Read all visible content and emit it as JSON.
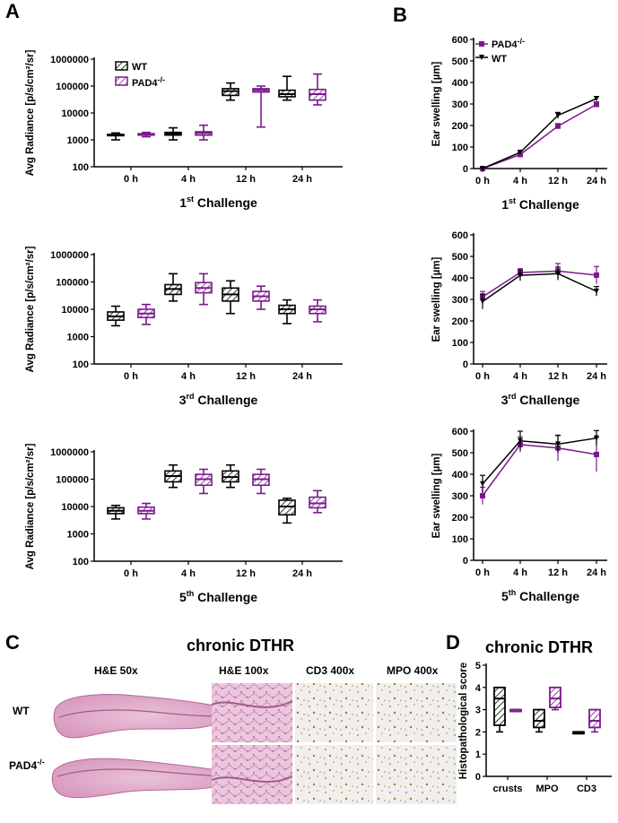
{
  "panel_labels": {
    "A": "A",
    "B": "B",
    "C": "C",
    "D": "D"
  },
  "colors": {
    "wt": "#000000",
    "pad4": "#7b1a8c"
  },
  "legend_a": {
    "wt": "WT",
    "pad4_base": "PAD4",
    "pad4_sup": "-/-"
  },
  "legend_b": {
    "pad4_base": "PAD4",
    "pad4_sup": "-/-",
    "wt": "WT"
  },
  "chart_data": [
    {
      "id": "A1",
      "type": "box",
      "scale": "log",
      "title_base": "1",
      "title_sup": "st",
      "title_rest": " Challenge",
      "ylabel": "Avg Radiance [p/s/cm²/sr]",
      "ylim": [
        100,
        1000000
      ],
      "yticks": [
        "100",
        "1000",
        "10000",
        "100000",
        "1000000"
      ],
      "categories": [
        "0 h",
        "4 h",
        "12 h",
        "24 h"
      ],
      "series": [
        {
          "name": "WT",
          "boxes": [
            [
              1000,
              1500,
              1500,
              1600,
              1800
            ],
            [
              1000,
              1500,
              1700,
              1900,
              2800
            ],
            [
              30000,
              45000,
              65000,
              80000,
              130000
            ],
            [
              30000,
              40000,
              50000,
              70000,
              230000
            ]
          ]
        },
        {
          "name": "PAD4-/-",
          "boxes": [
            [
              1300,
              1500,
              1600,
              1700,
              1900
            ],
            [
              1000,
              1500,
              1800,
              2000,
              3500
            ],
            [
              3000,
              60000,
              70000,
              80000,
              100000
            ],
            [
              20000,
              30000,
              50000,
              75000,
              280000
            ]
          ]
        }
      ]
    },
    {
      "id": "A2",
      "type": "box",
      "scale": "log",
      "title_base": "3",
      "title_sup": "rd",
      "title_rest": " Challenge",
      "ylabel": "Avg Radiance [p/s/cm²/sr]",
      "ylim": [
        100,
        1000000
      ],
      "yticks": [
        "100",
        "1000",
        "10000",
        "100000",
        "1000000"
      ],
      "categories": [
        "0 h",
        "4 h",
        "12 h",
        "24 h"
      ],
      "series": [
        {
          "name": "WT",
          "boxes": [
            [
              2500,
              4000,
              5500,
              8000,
              13000
            ],
            [
              20000,
              35000,
              55000,
              80000,
              200000
            ],
            [
              7000,
              20000,
              35000,
              60000,
              110000
            ],
            [
              3000,
              7000,
              10000,
              14000,
              22000
            ]
          ]
        },
        {
          "name": "PAD4-/-",
          "boxes": [
            [
              2800,
              5000,
              7000,
              10000,
              15000
            ],
            [
              15000,
              40000,
              60000,
              95000,
              200000
            ],
            [
              10000,
              20000,
              30000,
              45000,
              70000
            ],
            [
              3500,
              7000,
              10000,
              13000,
              22000
            ]
          ]
        }
      ]
    },
    {
      "id": "A3",
      "type": "box",
      "scale": "log",
      "title_base": "5",
      "title_sup": "th",
      "title_rest": " Challenge",
      "ylabel": "Avg Radiance [p/s/cm²/sr]",
      "ylim": [
        100,
        1000000
      ],
      "yticks": [
        "100",
        "1000",
        "10000",
        "100000",
        "1000000"
      ],
      "categories": [
        "0 h",
        "4 h",
        "12 h",
        "24 h"
      ],
      "series": [
        {
          "name": "WT",
          "boxes": [
            [
              3500,
              5500,
              7000,
              9000,
              11000
            ],
            [
              50000,
              80000,
              130000,
              200000,
              330000
            ],
            [
              50000,
              80000,
              120000,
              200000,
              330000
            ],
            [
              2500,
              5000,
              10000,
              17000,
              20000
            ]
          ]
        },
        {
          "name": "PAD4-/-",
          "boxes": [
            [
              3500,
              5500,
              7000,
              9500,
              13000
            ],
            [
              30000,
              60000,
              100000,
              150000,
              230000
            ],
            [
              30000,
              60000,
              100000,
              150000,
              230000
            ],
            [
              6000,
              9000,
              13000,
              22000,
              38000
            ]
          ]
        }
      ]
    },
    {
      "id": "B1",
      "type": "line",
      "title_base": "1",
      "title_sup": "st",
      "title_rest": " Challenge",
      "ylabel": "Ear swelling [µm]",
      "ylim": [
        0,
        600
      ],
      "yticks": [
        "0",
        "100",
        "200",
        "300",
        "400",
        "500",
        "600"
      ],
      "categories": [
        "0 h",
        "4 h",
        "12 h",
        "24 h"
      ],
      "series": [
        {
          "name": "PAD4-/-",
          "values": [
            0,
            65,
            197,
            298
          ],
          "err": [
            3,
            8,
            12,
            12
          ]
        },
        {
          "name": "WT",
          "values": [
            0,
            75,
            247,
            325
          ],
          "err": [
            3,
            8,
            14,
            10
          ]
        }
      ]
    },
    {
      "id": "B2",
      "type": "line",
      "title_base": "3",
      "title_sup": "rd",
      "title_rest": " Challenge",
      "ylabel": "Ear swelling [µm]",
      "ylim": [
        0,
        600
      ],
      "yticks": [
        "0",
        "100",
        "200",
        "300",
        "400",
        "500",
        "600"
      ],
      "categories": [
        "0 h",
        "4 h",
        "12 h",
        "24 h"
      ],
      "series": [
        {
          "name": "PAD4-/-",
          "values": [
            312,
            425,
            432,
            413
          ],
          "err": [
            25,
            18,
            35,
            40
          ]
        },
        {
          "name": "WT",
          "values": [
            290,
            412,
            420,
            338
          ],
          "err": [
            35,
            25,
            30,
            22
          ]
        }
      ]
    },
    {
      "id": "B3",
      "type": "line",
      "title_base": "5",
      "title_sup": "th",
      "title_rest": " Challenge",
      "ylabel": "Ear swelling [µm]",
      "ylim": [
        0,
        600
      ],
      "yticks": [
        "0",
        "100",
        "200",
        "300",
        "400",
        "500",
        "600"
      ],
      "categories": [
        "0 h",
        "4 h",
        "12 h",
        "24 h"
      ],
      "series": [
        {
          "name": "PAD4-/-",
          "values": [
            300,
            538,
            522,
            492
          ],
          "err": [
            40,
            35,
            60,
            80
          ]
        },
        {
          "name": "WT",
          "values": [
            355,
            555,
            540,
            568
          ],
          "err": [
            40,
            45,
            40,
            35
          ]
        }
      ]
    },
    {
      "id": "D",
      "type": "box",
      "title": "chronic DTHR",
      "ylabel": "Histopathological score",
      "ylim": [
        0,
        5
      ],
      "yticks": [
        "0",
        "1",
        "2",
        "3",
        "4",
        "5"
      ],
      "categories": [
        "crusts",
        "MPO",
        "CD3"
      ],
      "series": [
        {
          "name": "WT",
          "boxes": [
            [
              2,
              2.3,
              3.5,
              4,
              4
            ],
            [
              2,
              2.2,
              2.5,
              3,
              3
            ],
            [
              2,
              2,
              2,
              2,
              2
            ]
          ]
        },
        {
          "name": "PAD4-/-",
          "boxes": [
            [
              3,
              3,
              3,
              3,
              3
            ],
            [
              3,
              3.1,
              3.5,
              4,
              4
            ],
            [
              2,
              2.2,
              2.5,
              3,
              3
            ]
          ]
        }
      ]
    }
  ],
  "panel_c": {
    "title": "chronic DTHR",
    "headers": [
      "H&E 50x",
      "H&E 100x",
      "CD3 400x",
      "MPO 400x"
    ],
    "rows": [
      {
        "base": "WT",
        "sup": ""
      },
      {
        "base": "PAD4",
        "sup": "-/-"
      }
    ]
  }
}
